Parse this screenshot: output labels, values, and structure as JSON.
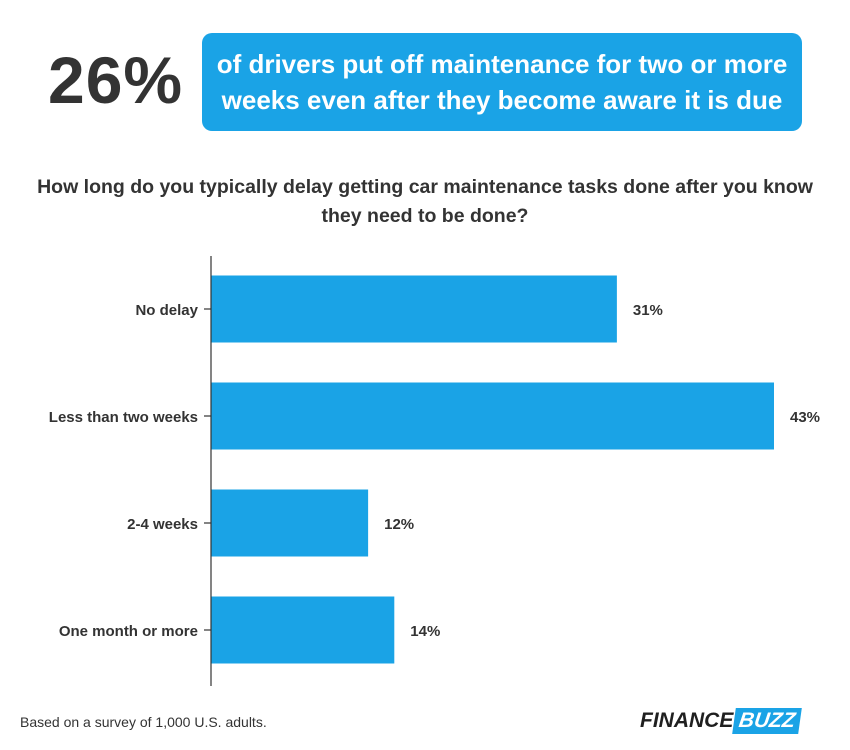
{
  "headline": {
    "stat": "26%",
    "text": "of drivers put off maintenance for two or more weeks even after they become aware it is due"
  },
  "footnote": "Based on a survey of 1,000 U.S. adults.",
  "logo": {
    "part1": "FINANCE",
    "part2": "BUZZ"
  },
  "colors": {
    "bar": "#1aa3e6",
    "text": "#333333",
    "axis": "#333333"
  },
  "chart_data": {
    "type": "bar",
    "orientation": "horizontal",
    "title": "How long do you typically delay getting car maintenance tasks done after you know they need to be done?",
    "categories": [
      "No delay",
      "Less than two weeks",
      "2-4 weeks",
      "One month or more"
    ],
    "values": [
      31,
      43,
      12,
      14
    ],
    "value_labels": [
      "31%",
      "43%",
      "12%",
      "14%"
    ],
    "xlim": [
      0,
      43
    ],
    "grid": false,
    "legend": "none"
  }
}
